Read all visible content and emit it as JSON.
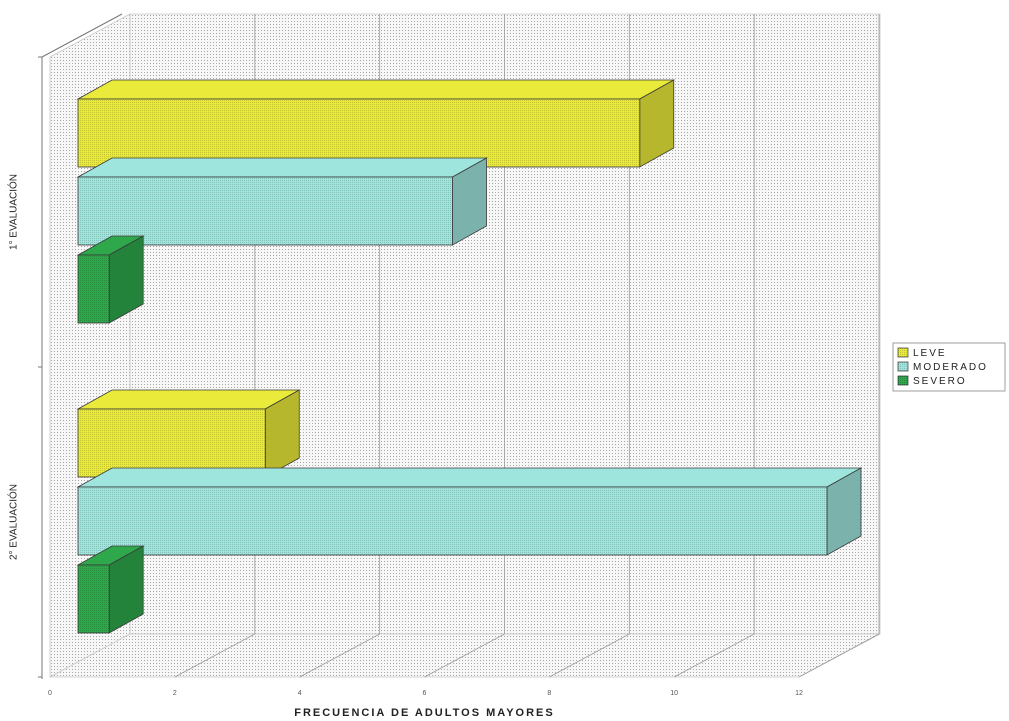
{
  "chart_data": {
    "type": "bar",
    "orientation": "horizontal",
    "three_d": true,
    "title": "",
    "xlabel": "FRECUENCIA DE ADULTOS MAYORES",
    "ylabel": "",
    "xlim": [
      0,
      12
    ],
    "x_ticks": [
      "0",
      "2",
      "4",
      "6",
      "8",
      "10",
      "12"
    ],
    "categories": [
      "1° EVALUACIÓN",
      "2° EVALUACIÓN"
    ],
    "series": [
      {
        "name": "LEVE",
        "values": [
          9,
          3
        ],
        "color": "#eaea3a"
      },
      {
        "name": "MODERADO",
        "values": [
          6,
          12
        ],
        "color": "#9ee6dd"
      },
      {
        "name": "SEVERO",
        "values": [
          0.5,
          0.5
        ],
        "color": "#2ea84a"
      }
    ],
    "grid": true,
    "legend_position": "right"
  }
}
